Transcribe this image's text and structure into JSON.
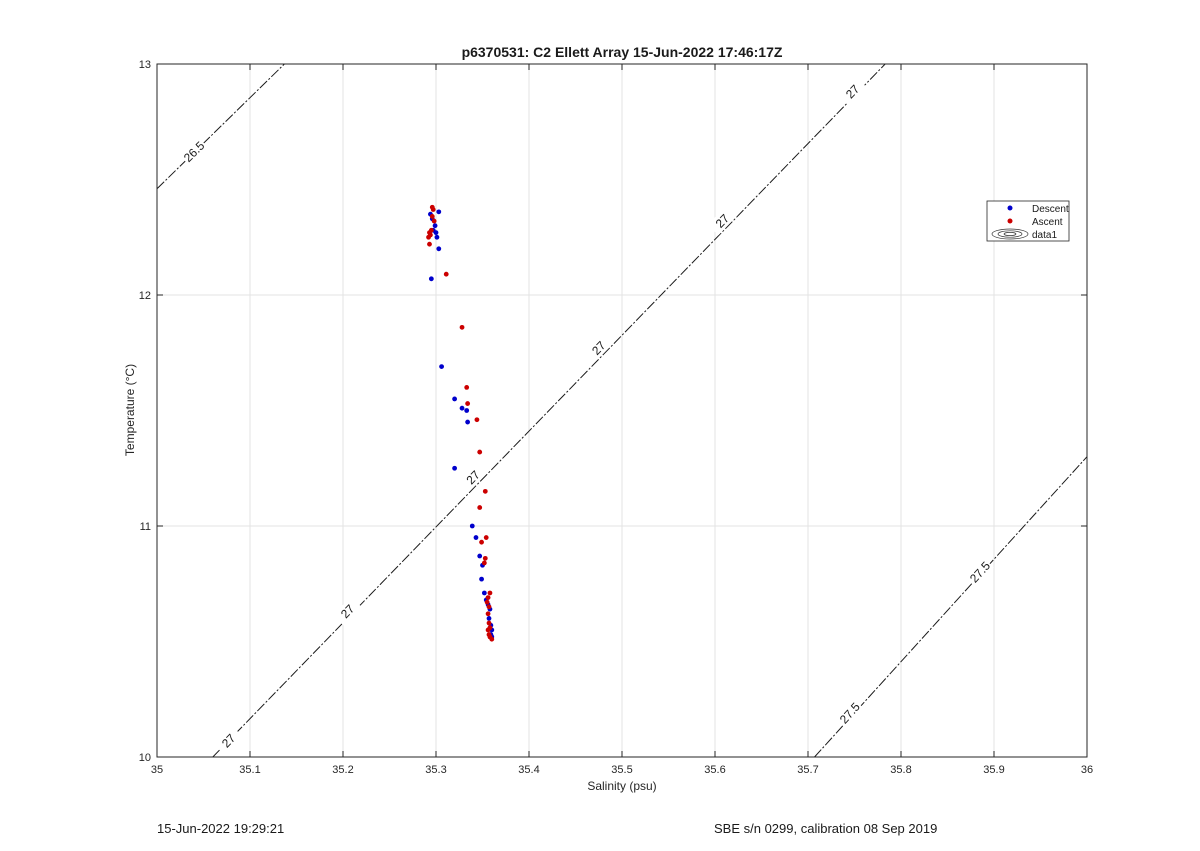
{
  "chart_data": {
    "type": "scatter",
    "title": "p6370531: C2 Ellett Array 15-Jun-2022 17:46:17Z",
    "xlabel": "Salinity (psu)",
    "ylabel": "Temperature (°C)",
    "xlim": [
      35,
      36
    ],
    "ylim": [
      10,
      13
    ],
    "xticks": [
      "35",
      "35.1",
      "35.2",
      "35.3",
      "35.4",
      "35.5",
      "35.6",
      "35.7",
      "35.8",
      "35.9",
      "36"
    ],
    "yticks": [
      "10",
      "11",
      "12",
      "13"
    ],
    "grid": true,
    "legend_position": "top-right",
    "legend": [
      "Descent",
      "Ascent",
      "data1"
    ],
    "contours": [
      {
        "level": "26.5",
        "points": [
          [
            35,
            12.46
          ],
          [
            35.137,
            13
          ]
        ],
        "labels": [
          [
            35.04,
            12.62
          ]
        ]
      },
      {
        "level": "27",
        "points": [
          [
            35.06,
            10
          ],
          [
            35.783,
            13
          ]
        ],
        "labels": [
          [
            35.077,
            10.07
          ],
          [
            35.205,
            10.63
          ],
          [
            35.34,
            11.21
          ],
          [
            35.475,
            11.77
          ],
          [
            35.608,
            12.32
          ],
          [
            35.748,
            12.88
          ]
        ]
      },
      {
        "level": "27.5",
        "points": [
          [
            35.707,
            10
          ],
          [
            36,
            11.3
          ]
        ],
        "labels": [
          [
            35.745,
            10.19
          ],
          [
            35.885,
            10.8
          ]
        ]
      }
    ],
    "series": [
      {
        "name": "Descent",
        "color": "#0000cc",
        "points": [
          [
            35.294,
            12.35
          ],
          [
            35.296,
            12.33
          ],
          [
            35.299,
            12.3
          ],
          [
            35.297,
            12.28
          ],
          [
            35.3,
            12.27
          ],
          [
            35.303,
            12.36
          ],
          [
            35.301,
            12.25
          ],
          [
            35.303,
            12.2
          ],
          [
            35.295,
            12.07
          ],
          [
            35.306,
            11.69
          ],
          [
            35.32,
            11.55
          ],
          [
            35.328,
            11.51
          ],
          [
            35.333,
            11.5
          ],
          [
            35.334,
            11.45
          ],
          [
            35.32,
            11.25
          ],
          [
            35.339,
            11.0
          ],
          [
            35.343,
            10.95
          ],
          [
            35.347,
            10.87
          ],
          [
            35.35,
            10.83
          ],
          [
            35.349,
            10.77
          ],
          [
            35.352,
            10.71
          ],
          [
            35.354,
            10.68
          ],
          [
            35.356,
            10.66
          ],
          [
            35.358,
            10.64
          ],
          [
            35.357,
            10.6
          ],
          [
            35.359,
            10.57
          ],
          [
            35.36,
            10.55
          ],
          [
            35.359,
            10.53
          ],
          [
            35.36,
            10.52
          ]
        ]
      },
      {
        "name": "Ascent",
        "color": "#cc0000",
        "points": [
          [
            35.296,
            12.38
          ],
          [
            35.297,
            12.37
          ],
          [
            35.296,
            12.34
          ],
          [
            35.298,
            12.32
          ],
          [
            35.295,
            12.28
          ],
          [
            35.293,
            12.27
          ],
          [
            35.294,
            12.26
          ],
          [
            35.292,
            12.25
          ],
          [
            35.293,
            12.22
          ],
          [
            35.311,
            12.09
          ],
          [
            35.328,
            11.86
          ],
          [
            35.333,
            11.6
          ],
          [
            35.334,
            11.53
          ],
          [
            35.344,
            11.46
          ],
          [
            35.347,
            11.32
          ],
          [
            35.353,
            11.15
          ],
          [
            35.347,
            11.08
          ],
          [
            35.354,
            10.95
          ],
          [
            35.349,
            10.93
          ],
          [
            35.353,
            10.86
          ],
          [
            35.352,
            10.84
          ],
          [
            35.358,
            10.71
          ],
          [
            35.356,
            10.69
          ],
          [
            35.355,
            10.67
          ],
          [
            35.357,
            10.65
          ],
          [
            35.356,
            10.62
          ],
          [
            35.357,
            10.58
          ],
          [
            35.358,
            10.56
          ],
          [
            35.356,
            10.55
          ],
          [
            35.357,
            10.53
          ],
          [
            35.358,
            10.52
          ],
          [
            35.36,
            10.51
          ]
        ]
      }
    ]
  },
  "footer": {
    "timestamp": "15-Jun-2022 19:29:21",
    "sensor_info": "SBE s/n 0299, calibration 08 Sep 2019"
  }
}
